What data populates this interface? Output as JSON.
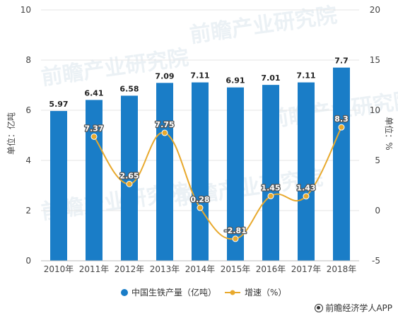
{
  "chart_data": {
    "type": "bar+line",
    "title": "",
    "categories": [
      "2010年",
      "2011年",
      "2012年",
      "2013年",
      "2014年",
      "2015年",
      "2016年",
      "2017年",
      "2018年"
    ],
    "series": [
      {
        "name": "中国生铁产量（亿吨）",
        "type": "bar",
        "axis": "left",
        "color": "#1a7dc7",
        "values": [
          5.97,
          6.41,
          6.58,
          7.09,
          7.11,
          6.91,
          7.01,
          7.11,
          7.7
        ],
        "labels": [
          "5.97",
          "6.41",
          "6.58",
          "7.09",
          "7.11",
          "6.91",
          "7.01",
          "7.11",
          "7.7"
        ]
      },
      {
        "name": "增速（%）",
        "type": "line",
        "axis": "right",
        "color": "#e8a92d",
        "values": [
          null,
          7.37,
          2.65,
          7.75,
          0.28,
          -2.81,
          1.45,
          1.43,
          8.3
        ],
        "labels": [
          "",
          "7.37",
          "2.65",
          "7.75",
          "0.28",
          "-2.81",
          "1.45",
          "1.43",
          "8.3"
        ]
      }
    ],
    "ylabel_left": "单位：亿吨",
    "ylabel_right": "单位：%",
    "ylim_left": [
      0,
      10
    ],
    "yticks_left": [
      "0",
      "2",
      "4",
      "6",
      "8",
      "10"
    ],
    "ylim_right": [
      -5,
      20
    ],
    "yticks_right": [
      "-5",
      "0",
      "5",
      "10",
      "15",
      "20"
    ],
    "grid": true,
    "legend_position": "bottom-center"
  },
  "watermark": "前瞻产业研究院",
  "source": "前瞻经济学人APP"
}
